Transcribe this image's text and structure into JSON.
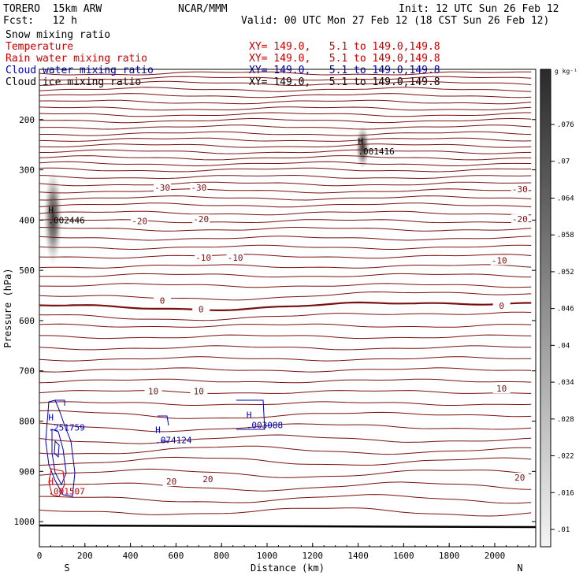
{
  "header": {
    "model": "TORERO  15km ARW",
    "org": "NCAR/MMM",
    "init": "Init: 12 UTC Sun 26 Feb 12",
    "fcst": "Fcst:   12 h",
    "valid": "Valid: 00 UTC Mon 27 Feb 12 (18 CST Sun 26 Feb 12)"
  },
  "fields": [
    {
      "name": "Snow mixing ratio",
      "xy": "",
      "color": "#000000"
    },
    {
      "name": "Temperature",
      "xy": "XY= 149.0,   5.1 to 149.0,149.8",
      "color": "#cc0000"
    },
    {
      "name": "Rain water mixing ratio",
      "xy": "XY= 149.0,   5.1 to 149.0,149.8",
      "color": "#cc0000"
    },
    {
      "name": "Cloud water mixing ratio",
      "xy": "XY= 149.0,   5.1 to 149.0,149.8",
      "color": "#0000bb"
    },
    {
      "name": "Cloud ice mixing ratio",
      "xy": "XY= 149.0,   5.1 to 149.0,149.8",
      "color": "#000000"
    }
  ],
  "chart_data": {
    "type": "contour",
    "xlabel": "Distance (km)",
    "ylabel": "Pressure (hPa)",
    "xlim": [
      0,
      2180
    ],
    "ylim": [
      1050,
      100
    ],
    "x_ticks": [
      0,
      200,
      400,
      600,
      800,
      1000,
      1200,
      1400,
      1600,
      1800,
      2000
    ],
    "y_ticks": [
      200,
      300,
      400,
      500,
      600,
      700,
      800,
      900,
      1000
    ],
    "endpoints": {
      "left": "S",
      "right": "N"
    },
    "colorbar": {
      "unit": "g kg⁻¹",
      "ticks": [
        ".01",
        ".016",
        ".022",
        ".028",
        ".034",
        ".04",
        ".046",
        ".052",
        ".058",
        ".064",
        ".07",
        ".076"
      ]
    },
    "temperature_labels": [
      {
        "text": "-30",
        "x": 540,
        "p": 335
      },
      {
        "text": "-30",
        "x": 700,
        "p": 335
      },
      {
        "text": "-30",
        "x": 2110,
        "p": 338
      },
      {
        "text": "-20",
        "x": 440,
        "p": 402
      },
      {
        "text": "-20",
        "x": 710,
        "p": 398
      },
      {
        "text": "-20",
        "x": 2110,
        "p": 398
      },
      {
        "text": "-10",
        "x": 720,
        "p": 475
      },
      {
        "text": "-10",
        "x": 860,
        "p": 475
      },
      {
        "text": "-10",
        "x": 2020,
        "p": 480
      },
      {
        "text": "0",
        "x": 540,
        "p": 560
      },
      {
        "text": "0",
        "x": 710,
        "p": 577
      },
      {
        "text": "0",
        "x": 2030,
        "p": 570
      },
      {
        "text": "10",
        "x": 500,
        "p": 740
      },
      {
        "text": "10",
        "x": 700,
        "p": 740
      },
      {
        "text": "10",
        "x": 2030,
        "p": 735
      },
      {
        "text": "20",
        "x": 580,
        "p": 920
      },
      {
        "text": "20",
        "x": 740,
        "p": 915
      },
      {
        "text": "20",
        "x": 2110,
        "p": 912
      }
    ],
    "maxima": [
      {
        "label": "H",
        "value": ".002446",
        "x": 60,
        "p": 392,
        "field": "Cloud ice mixing ratio"
      },
      {
        "label": "H",
        "value": ".001416",
        "x": 1420,
        "p": 255,
        "field": "Cloud ice mixing ratio"
      },
      {
        "label": "H",
        "value": ".251759",
        "x": 60,
        "p": 805,
        "field": "Cloud water mixing ratio"
      },
      {
        "label": "H",
        "value": ".074124",
        "x": 530,
        "p": 830,
        "field": "Cloud water mixing ratio"
      },
      {
        "label": "H",
        "value": ".003088",
        "x": 930,
        "p": 800,
        "field": "Cloud water mixing ratio"
      },
      {
        "label": "H",
        "value": ".001507",
        "x": 60,
        "p": 932,
        "field": "Rain water mixing ratio"
      }
    ]
  }
}
